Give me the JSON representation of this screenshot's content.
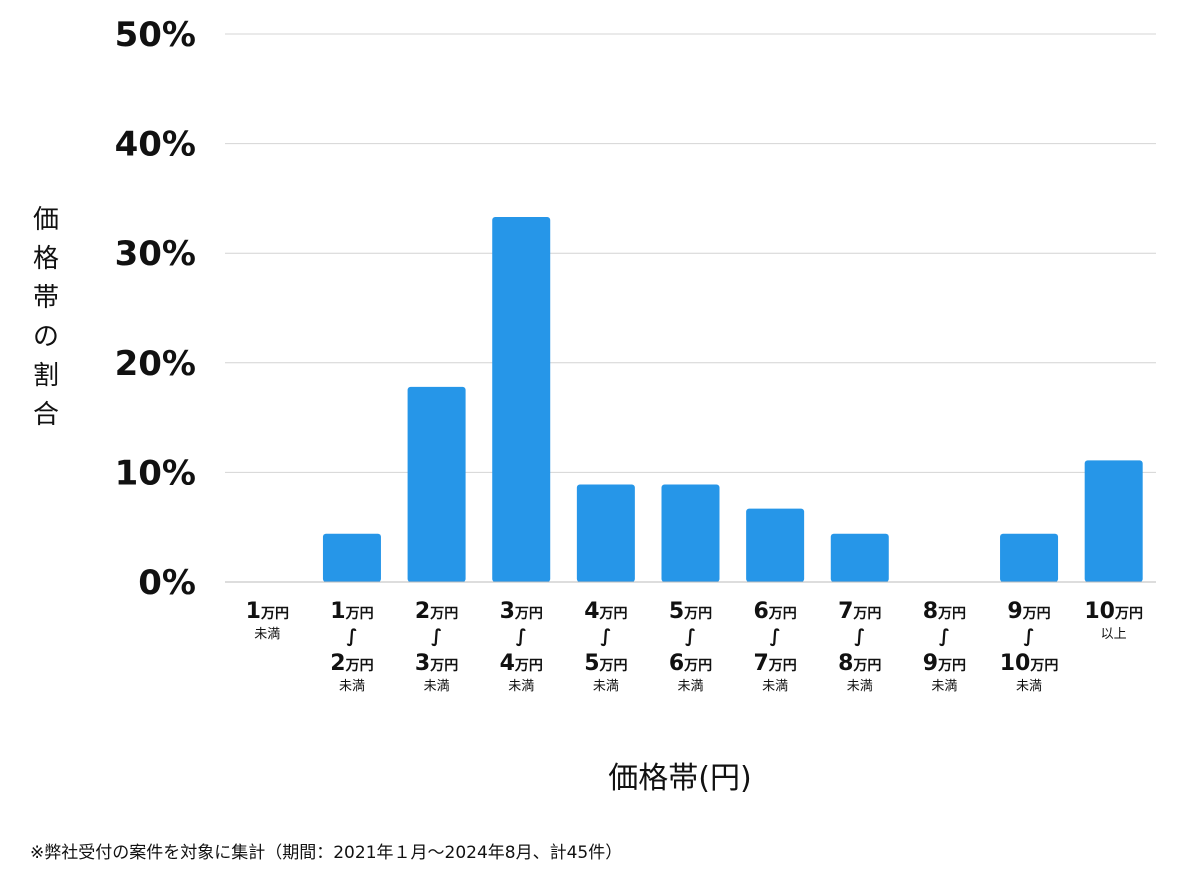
{
  "chart_data": {
    "type": "bar",
    "ylabel": "価格帯の割合",
    "xlabel": "価格帯(円)",
    "ylim": [
      0,
      50
    ],
    "yticks": [
      0,
      10,
      20,
      30,
      40,
      50
    ],
    "ytick_suffix": "%",
    "grid": true,
    "bar_color": "#2696e8",
    "categories": [
      {
        "lines": [
          {
            "num": "1",
            "unit": "万円"
          }
        ],
        "suffix": "未満",
        "tilde": false
      },
      {
        "lines": [
          {
            "num": "1",
            "unit": "万円"
          },
          {
            "num": "2",
            "unit": "万円"
          }
        ],
        "suffix": "未満",
        "tilde": true
      },
      {
        "lines": [
          {
            "num": "2",
            "unit": "万円"
          },
          {
            "num": "3",
            "unit": "万円"
          }
        ],
        "suffix": "未満",
        "tilde": true
      },
      {
        "lines": [
          {
            "num": "3",
            "unit": "万円"
          },
          {
            "num": "4",
            "unit": "万円"
          }
        ],
        "suffix": "未満",
        "tilde": true
      },
      {
        "lines": [
          {
            "num": "4",
            "unit": "万円"
          },
          {
            "num": "5",
            "unit": "万円"
          }
        ],
        "suffix": "未満",
        "tilde": true
      },
      {
        "lines": [
          {
            "num": "5",
            "unit": "万円"
          },
          {
            "num": "6",
            "unit": "万円"
          }
        ],
        "suffix": "未満",
        "tilde": true
      },
      {
        "lines": [
          {
            "num": "6",
            "unit": "万円"
          },
          {
            "num": "7",
            "unit": "万円"
          }
        ],
        "suffix": "未満",
        "tilde": true
      },
      {
        "lines": [
          {
            "num": "7",
            "unit": "万円"
          },
          {
            "num": "8",
            "unit": "万円"
          }
        ],
        "suffix": "未満",
        "tilde": true
      },
      {
        "lines": [
          {
            "num": "8",
            "unit": "万円"
          },
          {
            "num": "9",
            "unit": "万円"
          }
        ],
        "suffix": "未満",
        "tilde": true
      },
      {
        "lines": [
          {
            "num": "9",
            "unit": "万円"
          },
          {
            "num": "10",
            "unit": "万円"
          }
        ],
        "suffix": "未満",
        "tilde": true
      },
      {
        "lines": [
          {
            "num": "10",
            "unit": "万円"
          }
        ],
        "suffix": "以上",
        "tilde": false
      }
    ],
    "values": [
      0,
      4.4,
      17.8,
      33.3,
      8.9,
      8.9,
      6.7,
      4.4,
      0,
      4.4,
      11.1
    ]
  },
  "footnote": "※弊社受付の案件を対象に集計（期間：2021年１月〜2024年8月、計45件）"
}
